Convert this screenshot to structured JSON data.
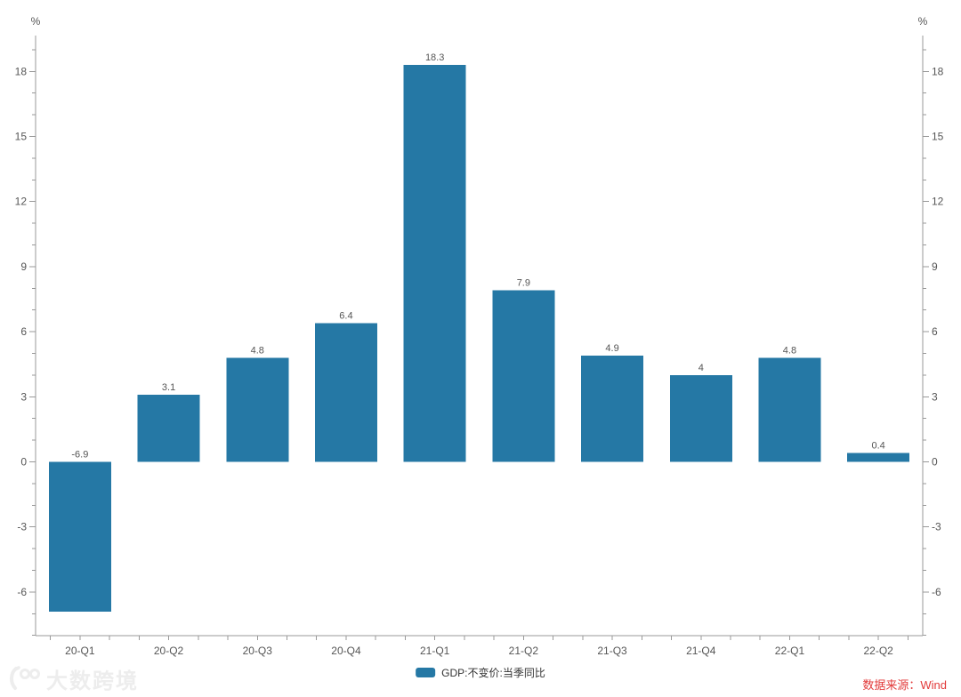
{
  "chart_data": {
    "type": "bar",
    "categories": [
      "20-Q1",
      "20-Q2",
      "20-Q3",
      "20-Q4",
      "21-Q1",
      "21-Q2",
      "21-Q3",
      "21-Q4",
      "22-Q1",
      "22-Q2"
    ],
    "values": [
      -6.9,
      3.1,
      4.8,
      6.4,
      18.3,
      7.9,
      4.9,
      4,
      4.8,
      0.4
    ],
    "series_name": "GDP:不变价:当季同比",
    "title": "",
    "xlabel": "",
    "ylabel_left": "%",
    "ylabel_right": "%",
    "y_major_ticks": [
      -6,
      -3,
      0,
      3,
      6,
      9,
      12,
      15,
      18
    ],
    "y_minor_step": 1,
    "ylim": [
      -8,
      19.6
    ],
    "grid": false,
    "legend_position": "bottom-center",
    "bar_color": "#2578a5",
    "value_labels": [
      "-6.9",
      "3.1",
      "4.8",
      "6.4",
      "18.3",
      "7.9",
      "4.9",
      "4",
      "4.8",
      "0.4"
    ]
  },
  "legend": {
    "label": "GDP:不变价:当季同比"
  },
  "axes": {
    "percent_left": "%",
    "percent_right": "%"
  },
  "footer": {
    "source": "数据来源：Wind",
    "watermark": "大数跨境"
  },
  "colors": {
    "bar": "#2578a5",
    "axis_line": "#999999",
    "tick_label": "#555555",
    "value_label": "#555555",
    "source_text": "#e23b3b",
    "watermark": "#ededed"
  }
}
